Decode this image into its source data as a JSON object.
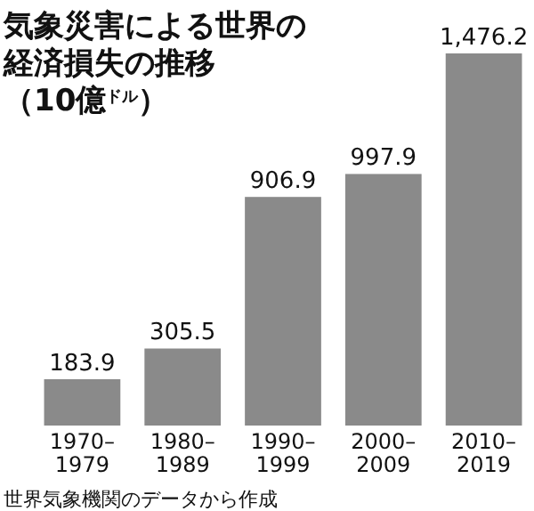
{
  "chart_data": {
    "type": "bar",
    "title": "気象災害による世界の経済損失の推移（10億$^{ドル}$）",
    "categories": [
      "1970–1979",
      "1980–1989",
      "1990–1999",
      "2000–2009",
      "2010–2019"
    ],
    "values": [
      183.9,
      305.5,
      906.9,
      997.9,
      1476.2
    ],
    "color": "#8a8a8a",
    "value_labels": [
      "183.9",
      "305.5",
      "906.9",
      "997.9",
      "1,476.2"
    ],
    "annotations": [
      "世界気象機関のデータから作成"
    ]
  }
}
